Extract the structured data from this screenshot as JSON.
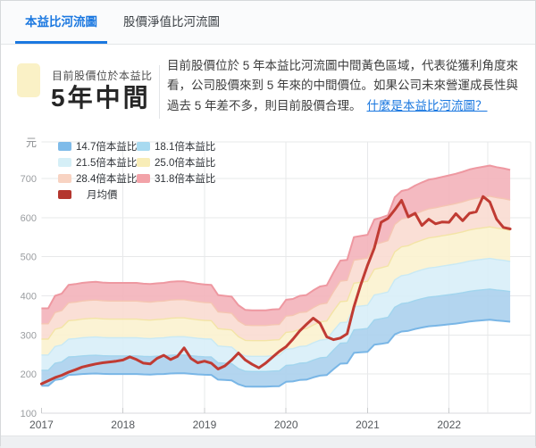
{
  "header": {
    "tabs": [
      {
        "label": "本益比河流圖",
        "active": true
      },
      {
        "label": "股價淨值比河流圖",
        "active": false
      }
    ],
    "accent_color": "#1b78e0"
  },
  "insight": {
    "label": "目前股價位於本益比",
    "value": "5年中間",
    "badge_color": "#faf1c6",
    "description": "目前股價位於 5 年本益比河流圖中間黃色區域，代表從獲利角度來看，公司股價來到 5 年來的中間價位。如果公司未來營運成長性與過去 5 年差不多，則目前股價合理。",
    "link_label": "什麼是本益比河流圖？"
  },
  "chart_data": {
    "type": "area",
    "title": "本益比河流圖",
    "unit_label": "元",
    "ylim": [
      100,
      700
    ],
    "y_ticks": [
      700,
      600,
      500,
      400,
      300,
      200,
      100
    ],
    "x_year_labels": [
      "2017",
      "2018",
      "2019",
      "2020",
      "2021",
      "2022"
    ],
    "grid": true,
    "legend_position": "top-left",
    "pe_multiples": [
      14.7,
      18.1,
      21.5,
      25.0,
      28.4,
      31.8
    ],
    "months": [
      "2017-01",
      "2017-02",
      "2017-03",
      "2017-04",
      "2017-05",
      "2017-06",
      "2017-07",
      "2017-08",
      "2017-09",
      "2017-10",
      "2017-11",
      "2017-12",
      "2018-01",
      "2018-02",
      "2018-03",
      "2018-04",
      "2018-05",
      "2018-06",
      "2018-07",
      "2018-08",
      "2018-09",
      "2018-10",
      "2018-11",
      "2018-12",
      "2019-01",
      "2019-02",
      "2019-03",
      "2019-04",
      "2019-05",
      "2019-06",
      "2019-07",
      "2019-08",
      "2019-09",
      "2019-10",
      "2019-11",
      "2019-12",
      "2020-01",
      "2020-02",
      "2020-03",
      "2020-04",
      "2020-05",
      "2020-06",
      "2020-07",
      "2020-08",
      "2020-09",
      "2020-10",
      "2020-11",
      "2020-12",
      "2021-01",
      "2021-02",
      "2021-03",
      "2021-04",
      "2021-05",
      "2021-06",
      "2021-07",
      "2021-08",
      "2021-09",
      "2021-10",
      "2021-11",
      "2021-12",
      "2022-01",
      "2022-02",
      "2022-03",
      "2022-04",
      "2022-05",
      "2022-06",
      "2022-07",
      "2022-08",
      "2022-09",
      "2022-10"
    ],
    "pe_top_line_values": [
      368,
      368,
      400,
      406,
      428,
      430,
      433,
      435,
      436,
      434,
      433,
      433,
      433,
      433,
      433,
      431,
      430,
      432,
      433,
      436,
      437,
      437,
      434,
      431,
      429,
      428,
      402,
      400,
      398,
      376,
      364,
      363,
      363,
      363,
      365,
      366,
      390,
      392,
      400,
      402,
      414,
      424,
      427,
      460,
      490,
      492,
      550,
      553,
      556,
      595,
      600,
      606,
      652,
      668,
      672,
      682,
      690,
      697,
      700,
      704,
      708,
      712,
      717,
      723,
      727,
      730,
      733,
      729,
      726,
      722
    ],
    "series": [
      {
        "name": "月均價",
        "color": "#c03b33",
        "values": [
          175,
          183,
          191,
          197,
          205,
          211,
          218,
          222,
          226,
          229,
          231,
          233,
          236,
          244,
          237,
          228,
          226,
          240,
          248,
          237,
          245,
          267,
          240,
          229,
          233,
          228,
          213,
          221,
          236,
          254,
          236,
          225,
          216,
          228,
          243,
          258,
          270,
          289,
          310,
          327,
          343,
          330,
          295,
          288,
          292,
          303,
          372,
          428,
          478,
          522,
          588,
          598,
          620,
          644,
          602,
          611,
          580,
          596,
          584,
          589,
          588,
          610,
          592,
          611,
          615,
          654,
          640,
          596,
          575,
          571
        ]
      }
    ],
    "legend": [
      {
        "label": "14.7倍本益比",
        "color": "#7fbbe9"
      },
      {
        "label": "18.1倍本益比",
        "color": "#a8daf0"
      },
      {
        "label": "21.5倍本益比",
        "color": "#d5eff7"
      },
      {
        "label": "25.0倍本益比",
        "color": "#f8edb7"
      },
      {
        "label": "28.4倍本益比",
        "color": "#f8d3c2"
      },
      {
        "label": "31.8倍本益比",
        "color": "#f2a2a8"
      },
      {
        "label": "月均價",
        "color": "#b4362e"
      }
    ],
    "band_fills": [
      "#abd0ed",
      "#d8eef8",
      "#fbf2cf",
      "#f9dcd1",
      "#f3b3ba"
    ],
    "line_colors": [
      "#79b6e6",
      "#a2d5ee",
      "#c9e9f4",
      "#f3e4a6",
      "#f5c5b2",
      "#ee98a1"
    ]
  }
}
